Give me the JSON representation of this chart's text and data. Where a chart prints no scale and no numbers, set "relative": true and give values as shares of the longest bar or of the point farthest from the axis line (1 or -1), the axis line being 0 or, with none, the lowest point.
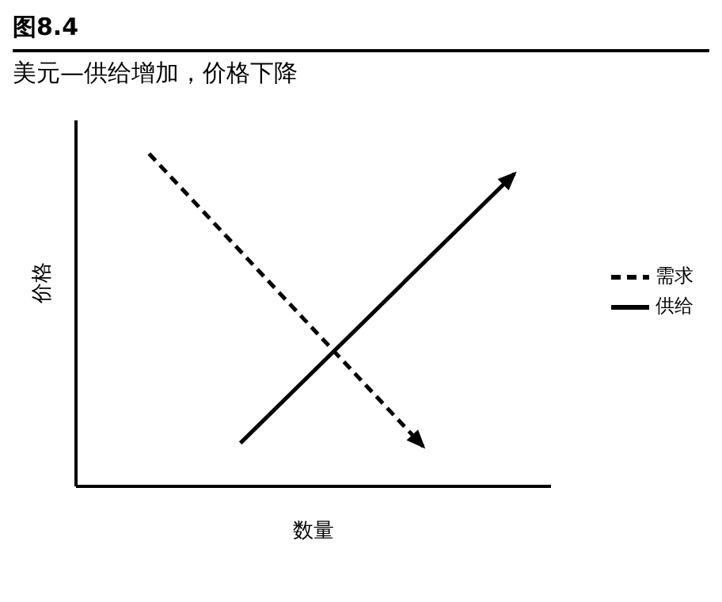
{
  "chart_data": {
    "type": "line",
    "title": "图8.4",
    "subtitle": "美元—供给增加，价格下降",
    "xlabel": "数量",
    "ylabel": "价格",
    "relative": true,
    "grid": false,
    "legend": "right",
    "marker": "none",
    "categories": [
      null,
      null,
      null,
      null,
      null,
      null,
      null,
      null,
      null,
      null,
      null,
      null,
      null,
      null,
      null,
      null,
      null,
      null,
      null,
      null,
      null,
      null,
      null,
      null,
      null,
      null,
      null
    ],
    "series": [
      {
        "name": "需求",
        "color": "#000000",
        "line_style": "dashed",
        "values": [
          null,
          null,
          null,
          null,
          1,
          null,
          null,
          null,
          null,
          null,
          null,
          null,
          null,
          null,
          null,
          null,
          null,
          null,
          null,
          0.12,
          null,
          null,
          null,
          null,
          null,
          null,
          null
        ]
      },
      {
        "name": "供给",
        "color": "#000000",
        "line_style": "solid",
        "values": [
          null,
          null,
          null,
          null,
          null,
          null,
          null,
          null,
          null,
          0.13,
          null,
          null,
          null,
          null,
          null,
          null,
          null,
          null,
          null,
          null,
          null,
          null,
          null,
          null,
          0.94,
          null,
          null
        ]
      }
    ]
  }
}
